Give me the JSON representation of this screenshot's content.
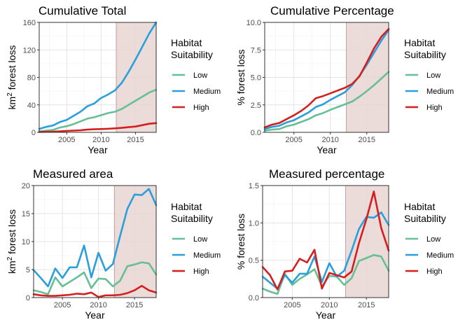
{
  "legend": {
    "title_line1": "Habitat",
    "title_line2": "Suitability",
    "items": [
      {
        "label": "Low",
        "color": "#66BF97"
      },
      {
        "label": "Medium",
        "color": "#2B9FDB"
      },
      {
        "label": "High",
        "color": "#D51F1F"
      }
    ]
  },
  "shading_color": "#E7D5D2",
  "shading_border": "#B58C88",
  "chart_data": [
    {
      "type": "line",
      "title": "Cumulative Total",
      "xlabel": "Year",
      "ylabel_pre": "km",
      "ylabel_sup": "2",
      "ylabel_post": " forest loss",
      "xlim": [
        2001,
        2018
      ],
      "ylim": [
        0,
        160
      ],
      "xticks": [
        2005,
        2010,
        2015
      ],
      "xtick_labels": [
        "2005",
        "2010",
        "2015"
      ],
      "yticks": [
        0,
        40,
        80,
        120,
        160
      ],
      "ytick_labels": [
        "0",
        "40",
        "80",
        "120",
        "160"
      ],
      "shade": [
        2012.2,
        2018
      ],
      "grid": true,
      "legend_position": "right",
      "x": [
        2001,
        2002,
        2003,
        2004,
        2005,
        2006,
        2007,
        2008,
        2009,
        2010,
        2011,
        2012,
        2013,
        2014,
        2015,
        2016,
        2017,
        2018
      ],
      "series": [
        {
          "name": "Low",
          "values": [
            1.5,
            2.5,
            3.5,
            7,
            9,
            12,
            16,
            20,
            22,
            25,
            28,
            30,
            34,
            40,
            46,
            52,
            58,
            62
          ]
        },
        {
          "name": "Medium",
          "values": [
            5,
            8,
            10,
            15,
            18,
            24,
            30,
            38,
            42,
            50,
            55,
            61,
            72,
            88,
            106,
            125,
            144,
            160
          ]
        },
        {
          "name": "High",
          "values": [
            0.5,
            0.8,
            1,
            1.5,
            2,
            2.5,
            3,
            4,
            4.5,
            4.8,
            5.2,
            5.8,
            6.5,
            7.5,
            8.5,
            10.5,
            12.5,
            13.5
          ]
        }
      ]
    },
    {
      "type": "line",
      "title": "Cumulative Percentage",
      "xlabel": "Year",
      "ylabel_pre": "% forest loss",
      "ylabel_sup": "",
      "ylabel_post": "",
      "xlim": [
        2001,
        2018
      ],
      "ylim": [
        0,
        10
      ],
      "xticks": [
        2005,
        2010,
        2015
      ],
      "xtick_labels": [
        "2005",
        "2010",
        "2015"
      ],
      "yticks": [
        0,
        2.5,
        5,
        7.5,
        10
      ],
      "ytick_labels": [
        "0.0",
        "2.5",
        "5.0",
        "7.5",
        "10.0"
      ],
      "shade": [
        2012.2,
        2018
      ],
      "grid": true,
      "legend_position": "right",
      "x": [
        2001,
        2002,
        2003,
        2004,
        2005,
        2006,
        2007,
        2008,
        2009,
        2010,
        2011,
        2012,
        2013,
        2014,
        2015,
        2016,
        2017,
        2018
      ],
      "series": [
        {
          "name": "Low",
          "values": [
            0.15,
            0.25,
            0.3,
            0.55,
            0.7,
            0.95,
            1.2,
            1.55,
            1.75,
            2.05,
            2.3,
            2.55,
            2.8,
            3.25,
            3.75,
            4.3,
            4.9,
            5.5
          ]
        },
        {
          "name": "Medium",
          "values": [
            0.3,
            0.5,
            0.6,
            0.9,
            1.1,
            1.45,
            1.8,
            2.3,
            2.55,
            2.95,
            3.3,
            3.65,
            4.3,
            5.15,
            6.15,
            7.25,
            8.35,
            9.3
          ]
        },
        {
          "name": "High",
          "values": [
            0.45,
            0.7,
            0.85,
            1.2,
            1.55,
            1.95,
            2.45,
            3.1,
            3.3,
            3.55,
            3.8,
            4.05,
            4.4,
            5.1,
            6.35,
            7.65,
            8.7,
            9.4
          ]
        }
      ]
    },
    {
      "type": "line",
      "title": "Measured area",
      "xlabel": "Year",
      "ylabel_pre": "km",
      "ylabel_sup": "2",
      "ylabel_post": " forest loss",
      "xlim": [
        2001,
        2018
      ],
      "ylim": [
        0,
        20
      ],
      "xticks": [
        2005,
        2010,
        2015
      ],
      "xtick_labels": [
        "2005",
        "2010",
        "2015"
      ],
      "yticks": [
        0,
        5,
        10,
        15,
        20
      ],
      "ytick_labels": [
        "0",
        "5",
        "10",
        "15",
        "20"
      ],
      "shade": [
        2012.2,
        2018
      ],
      "grid": true,
      "legend_position": "right",
      "x": [
        2001,
        2002,
        2003,
        2004,
        2005,
        2006,
        2007,
        2008,
        2009,
        2010,
        2011,
        2012,
        2013,
        2014,
        2015,
        2016,
        2017,
        2018
      ],
      "series": [
        {
          "name": "Low",
          "values": [
            1.3,
            1.0,
            0.6,
            3.6,
            2.0,
            2.8,
            3.6,
            4.5,
            1.7,
            3.4,
            3.3,
            2.0,
            3.0,
            5.6,
            5.9,
            6.3,
            6.1,
            4.1
          ]
        },
        {
          "name": "Medium",
          "values": [
            4.9,
            3.5,
            2.0,
            5.2,
            3.5,
            5.4,
            5.4,
            9.3,
            3.6,
            8.0,
            4.8,
            6.0,
            11.0,
            15.8,
            18.4,
            18.3,
            19.4,
            16.5
          ]
        },
        {
          "name": "High",
          "values": [
            0.6,
            0.4,
            0.3,
            0.3,
            0.4,
            0.5,
            0.7,
            0.6,
            0.9,
            0.1,
            0.4,
            0.4,
            0.5,
            0.8,
            1.3,
            2.1,
            1.3,
            0.9
          ]
        }
      ]
    },
    {
      "type": "line",
      "title": "Measured percentage",
      "xlabel": "Year",
      "ylabel_pre": "% forest loss",
      "ylabel_sup": "",
      "ylabel_post": "",
      "xlim": [
        2001,
        2018
      ],
      "ylim": [
        0,
        1.5
      ],
      "xticks": [
        2005,
        2010,
        2015
      ],
      "xtick_labels": [
        "2005",
        "2010",
        "2015"
      ],
      "yticks": [
        0,
        0.5,
        1,
        1.5
      ],
      "ytick_labels": [
        "0.0",
        "0.5",
        "1.0",
        "1.5"
      ],
      "shade": [
        2012.2,
        2018
      ],
      "grid": true,
      "legend_position": "right",
      "x": [
        2001,
        2002,
        2003,
        2004,
        2005,
        2006,
        2007,
        2008,
        2009,
        2010,
        2011,
        2012,
        2013,
        2014,
        2015,
        2016,
        2017,
        2018
      ],
      "series": [
        {
          "name": "Low",
          "values": [
            0.12,
            0.08,
            0.05,
            0.32,
            0.17,
            0.25,
            0.31,
            0.38,
            0.15,
            0.29,
            0.28,
            0.17,
            0.26,
            0.49,
            0.53,
            0.57,
            0.55,
            0.36
          ]
        },
        {
          "name": "Medium",
          "values": [
            0.28,
            0.2,
            0.12,
            0.3,
            0.2,
            0.32,
            0.32,
            0.55,
            0.21,
            0.46,
            0.28,
            0.36,
            0.63,
            0.92,
            1.08,
            1.07,
            1.14,
            0.97
          ]
        },
        {
          "name": "High",
          "values": [
            0.41,
            0.3,
            0.11,
            0.35,
            0.36,
            0.52,
            0.47,
            0.64,
            0.12,
            0.33,
            0.3,
            0.27,
            0.35,
            0.73,
            1.05,
            1.42,
            0.93,
            0.63
          ]
        }
      ]
    }
  ]
}
